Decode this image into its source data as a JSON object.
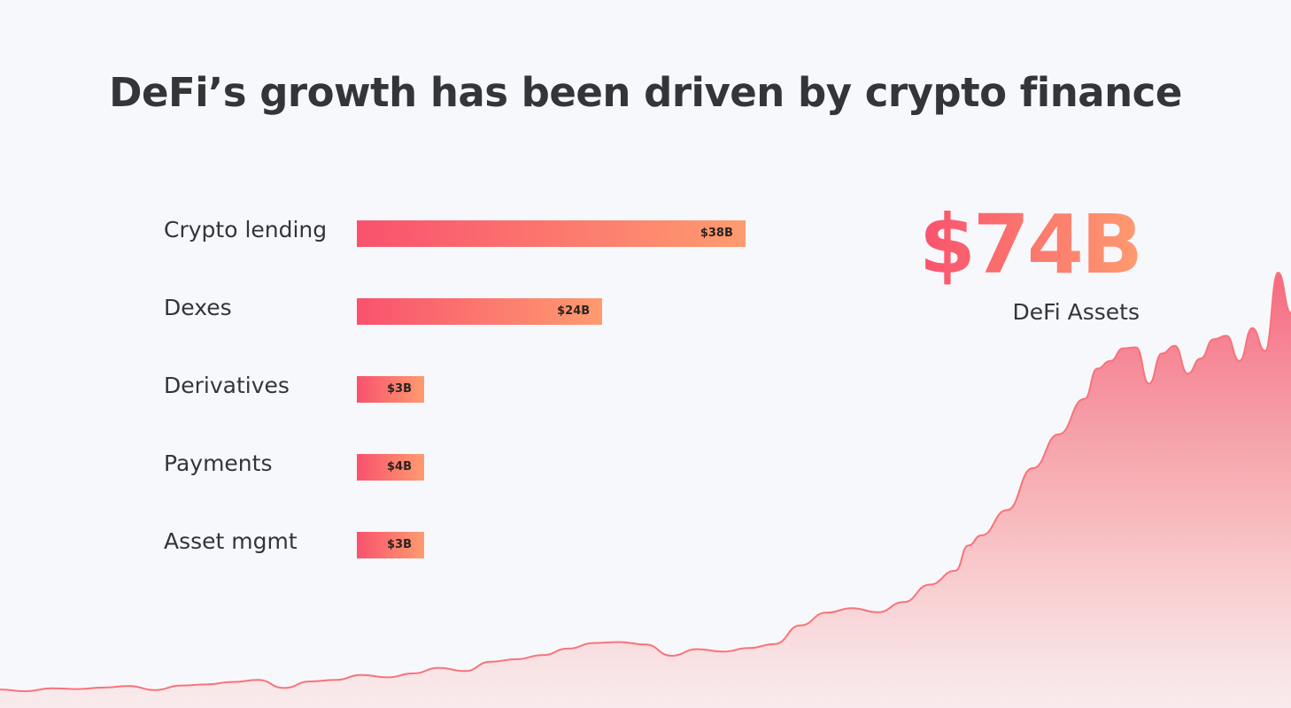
{
  "title": "DeFi’s growth has been driven by crypto finance",
  "highlight": {
    "value": "$74B",
    "caption": "DeFi Assets"
  },
  "chart_data": [
    {
      "type": "bar",
      "orientation": "horizontal",
      "categories": [
        "Crypto lending",
        "Dexes",
        "Derivatives",
        "Payments",
        "Asset mgmt"
      ],
      "values": [
        38,
        24,
        3,
        4,
        3
      ],
      "value_labels": [
        "$38B",
        "$24B",
        "$3B",
        "$4B",
        "$3B"
      ],
      "unit": "$B"
    },
    {
      "type": "area",
      "axes_shown": false,
      "grid": false,
      "x": [
        0.0,
        0.02,
        0.04,
        0.06,
        0.08,
        0.1,
        0.12,
        0.14,
        0.16,
        0.18,
        0.2,
        0.22,
        0.24,
        0.26,
        0.28,
        0.3,
        0.32,
        0.34,
        0.36,
        0.38,
        0.4,
        0.42,
        0.44,
        0.46,
        0.48,
        0.5,
        0.52,
        0.54,
        0.56,
        0.58,
        0.6,
        0.62,
        0.64,
        0.66,
        0.68,
        0.7,
        0.72,
        0.74,
        0.75,
        0.76,
        0.78,
        0.8,
        0.82,
        0.84,
        0.85,
        0.86,
        0.87,
        0.88,
        0.89,
        0.9,
        0.91,
        0.92,
        0.93,
        0.94,
        0.95,
        0.96,
        0.97,
        0.98,
        0.99,
        1.0
      ],
      "values": [
        1.0,
        0.3,
        1.5,
        1.2,
        1.8,
        2.4,
        0.8,
        2.6,
        3.0,
        4.0,
        4.8,
        1.6,
        4.2,
        4.8,
        6.8,
        5.8,
        7.4,
        9.6,
        8.3,
        12.0,
        13.0,
        14.6,
        17.2,
        19.4,
        19.8,
        18.8,
        14.4,
        17.0,
        16.0,
        17.4,
        19.0,
        26.4,
        31.4,
        33.2,
        31.6,
        35.6,
        42.5,
        48.0,
        58.0,
        62.0,
        72.0,
        88.6,
        102.0,
        116.0,
        128.0,
        131.0,
        136.0,
        136.4,
        122.0,
        134.0,
        137.0,
        126.0,
        132.0,
        139.6,
        141.0,
        131.0,
        144.0,
        135.0,
        166.0,
        150.0
      ],
      "y_range": [
        0,
        180
      ]
    }
  ]
}
